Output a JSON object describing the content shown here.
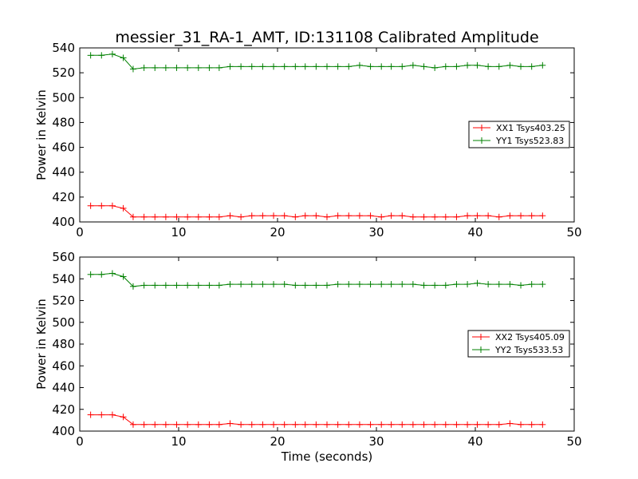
{
  "figure": {
    "title": "messier_31_RA-1_AMT, ID:131108 Calibrated Amplitude"
  },
  "chart_data": [
    {
      "type": "line",
      "title": "messier_31_RA-1_AMT, ID:131108 Calibrated Amplitude",
      "xlabel": "",
      "ylabel": "Power in Kelvin",
      "xlim": [
        0,
        50
      ],
      "ylim": [
        400,
        540
      ],
      "xticks": [
        "0",
        "10",
        "20",
        "30",
        "40",
        "50"
      ],
      "yticks": [
        "400",
        "420",
        "440",
        "460",
        "480",
        "500",
        "520",
        "540"
      ],
      "grid": false,
      "legend_position": "center-right",
      "x": [
        1.1,
        2.2,
        3.3,
        4.4,
        5.4,
        6.5,
        7.6,
        8.7,
        9.8,
        10.9,
        12.0,
        13.1,
        14.1,
        15.2,
        16.3,
        17.4,
        18.5,
        19.6,
        20.7,
        21.8,
        22.8,
        23.9,
        25.0,
        26.1,
        27.2,
        28.3,
        29.4,
        30.5,
        31.5,
        32.6,
        33.7,
        34.8,
        35.9,
        37.0,
        38.1,
        39.2,
        40.2,
        41.3,
        42.4,
        43.5,
        44.6,
        45.7,
        46.8
      ],
      "series": [
        {
          "name": "XX1 Tsys403.25",
          "color": "#ff0000",
          "values": [
            413,
            413,
            413,
            411,
            404,
            404,
            404,
            404,
            404,
            404,
            404,
            404,
            404,
            405,
            404,
            405,
            405,
            405,
            405,
            404,
            405,
            405,
            404,
            405,
            405,
            405,
            405,
            404,
            405,
            405,
            404,
            404,
            404,
            404,
            404,
            405,
            405,
            405,
            404,
            405,
            405,
            405,
            405
          ]
        },
        {
          "name": "YY1 Tsys523.83",
          "color": "#008000",
          "values": [
            534,
            534,
            535,
            532,
            523,
            524,
            524,
            524,
            524,
            524,
            524,
            524,
            524,
            525,
            525,
            525,
            525,
            525,
            525,
            525,
            525,
            525,
            525,
            525,
            525,
            526,
            525,
            525,
            525,
            525,
            526,
            525,
            524,
            525,
            525,
            526,
            526,
            525,
            525,
            526,
            525,
            525,
            526
          ]
        }
      ]
    },
    {
      "type": "line",
      "title": "",
      "xlabel": "Time (seconds)",
      "ylabel": "Power in Kelvin",
      "xlim": [
        0,
        50
      ],
      "ylim": [
        400,
        560
      ],
      "xticks": [
        "0",
        "10",
        "20",
        "30",
        "40",
        "50"
      ],
      "yticks": [
        "400",
        "420",
        "440",
        "460",
        "480",
        "500",
        "520",
        "540",
        "560"
      ],
      "grid": false,
      "legend_position": "center-right",
      "x": [
        1.1,
        2.2,
        3.3,
        4.4,
        5.4,
        6.5,
        7.6,
        8.7,
        9.8,
        10.9,
        12.0,
        13.1,
        14.1,
        15.2,
        16.3,
        17.4,
        18.5,
        19.6,
        20.7,
        21.8,
        22.8,
        23.9,
        25.0,
        26.1,
        27.2,
        28.3,
        29.4,
        30.5,
        31.5,
        32.6,
        33.7,
        34.8,
        35.9,
        37.0,
        38.1,
        39.2,
        40.2,
        41.3,
        42.4,
        43.5,
        44.6,
        45.7,
        46.8
      ],
      "series": [
        {
          "name": "XX2 Tsys405.09",
          "color": "#ff0000",
          "values": [
            415,
            415,
            415,
            413,
            406,
            406,
            406,
            406,
            406,
            406,
            406,
            406,
            406,
            407,
            406,
            406,
            406,
            406,
            406,
            406,
            406,
            406,
            406,
            406,
            406,
            406,
            406,
            406,
            406,
            406,
            406,
            406,
            406,
            406,
            406,
            406,
            406,
            406,
            406,
            407,
            406,
            406,
            406
          ]
        },
        {
          "name": "YY2 Tsys533.53",
          "color": "#008000",
          "values": [
            544,
            544,
            545,
            542,
            533,
            534,
            534,
            534,
            534,
            534,
            534,
            534,
            534,
            535,
            535,
            535,
            535,
            535,
            535,
            534,
            534,
            534,
            534,
            535,
            535,
            535,
            535,
            535,
            535,
            535,
            535,
            534,
            534,
            534,
            535,
            535,
            536,
            535,
            535,
            535,
            534,
            535,
            535
          ]
        }
      ]
    }
  ]
}
